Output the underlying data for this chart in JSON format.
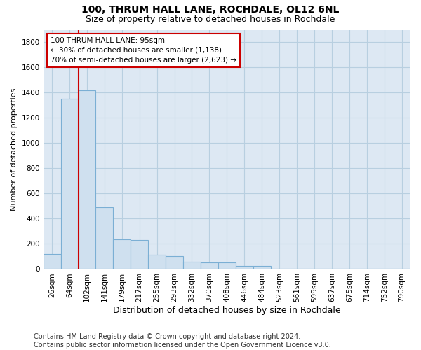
{
  "title": "100, THRUM HALL LANE, ROCHDALE, OL12 6NL",
  "subtitle": "Size of property relative to detached houses in Rochdale",
  "xlabel": "Distribution of detached houses by size in Rochdale",
  "ylabel": "Number of detached properties",
  "bin_labels": [
    "26sqm",
    "64sqm",
    "102sqm",
    "141sqm",
    "179sqm",
    "217sqm",
    "255sqm",
    "293sqm",
    "332sqm",
    "370sqm",
    "408sqm",
    "446sqm",
    "484sqm",
    "523sqm",
    "561sqm",
    "599sqm",
    "637sqm",
    "675sqm",
    "714sqm",
    "752sqm",
    "790sqm"
  ],
  "bar_values": [
    120,
    1350,
    1420,
    490,
    235,
    230,
    115,
    105,
    60,
    55,
    55,
    25,
    25,
    0,
    0,
    0,
    0,
    0,
    0,
    0,
    0
  ],
  "bar_color": "#cfe0ef",
  "bar_edge_color": "#7bafd4",
  "red_line_x": 1.5,
  "annotation_text": "100 THRUM HALL LANE: 95sqm\n← 30% of detached houses are smaller (1,138)\n70% of semi-detached houses are larger (2,623) →",
  "annotation_box_color": "white",
  "annotation_box_edge_color": "#cc0000",
  "ylim": [
    0,
    1900
  ],
  "yticks": [
    0,
    200,
    400,
    600,
    800,
    1000,
    1200,
    1400,
    1600,
    1800
  ],
  "background_color": "#dde8f3",
  "grid_color": "#b8cfe0",
  "footer": "Contains HM Land Registry data © Crown copyright and database right 2024.\nContains public sector information licensed under the Open Government Licence v3.0.",
  "title_fontsize": 10,
  "subtitle_fontsize": 9,
  "xlabel_fontsize": 9,
  "ylabel_fontsize": 8,
  "annotation_fontsize": 7.5,
  "tick_fontsize": 7.5,
  "footer_fontsize": 7
}
